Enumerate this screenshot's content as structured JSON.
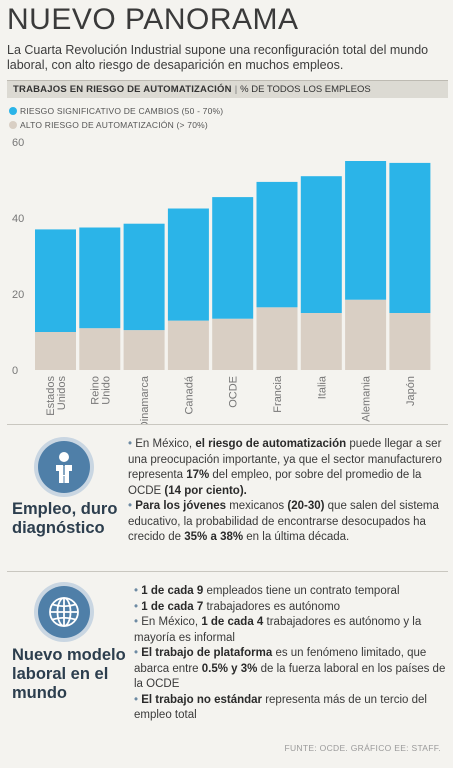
{
  "title": "NUEVO PANORAMA",
  "subtitle": "La Cuarta Revolución Industrial supone una reconfiguración total del mundo laboral, con alto riesgo de desaparición en muchos empleos.",
  "band": {
    "bold": "TRABAJOS EN RIESGO DE AUTOMATIZACIÓN",
    "sep": "|",
    "rest": "% DE TODOS LOS EMPLEOS"
  },
  "colors": {
    "significant": "#2bb4e8",
    "high": "#d9cfc4",
    "accent": "#4f7fa8"
  },
  "chart_data": {
    "type": "bar",
    "stacked": true,
    "categories": [
      "Estados Unidos",
      "Reino Unido",
      "Dinamarca",
      "Canadá",
      "OCDE",
      "Francia",
      "Italia",
      "Alemania",
      "Japón"
    ],
    "series": [
      {
        "name": "ALTO RIESGO DE AUTOMATIZACIÓN (> 70%)",
        "values": [
          10,
          11,
          10.5,
          13,
          13.5,
          16.5,
          15,
          18.5,
          15
        ],
        "color": "#d9cfc4"
      },
      {
        "name": "RIESGO SIGNIFICATIVO DE CAMBIOS (50 - 70%)",
        "values": [
          27,
          26.5,
          28,
          29.5,
          32,
          33,
          36,
          36.5,
          39.5
        ],
        "color": "#2bb4e8"
      }
    ],
    "ylim": [
      0,
      60
    ],
    "yticks": [
      "0",
      "20",
      "40",
      "60"
    ],
    "xtick_labels": [
      [
        "Estados",
        "Unidos"
      ],
      [
        "Reino",
        "Unido"
      ],
      [
        "Dinamarca"
      ],
      [
        "Canadá"
      ],
      [
        "OCDE"
      ],
      [
        "Francia"
      ],
      [
        "Italia"
      ],
      [
        "Alemania"
      ],
      [
        "Japón"
      ]
    ],
    "grid": false,
    "legend": "top-left"
  },
  "section1": {
    "title_line1": "Empleo, duro",
    "title_line2": "diagnóstico",
    "icon": "worker-icon",
    "bullets": [
      [
        {
          "t": "• ",
          "c": 1
        },
        {
          "t": "En México, "
        },
        {
          "t": "el riesgo de automatización",
          "b": 1
        },
        {
          "t": " puede llegar a ser una preocupación importante, ya que el sector manufacturero representa "
        },
        {
          "t": "17%",
          "b": 1
        },
        {
          "t": " del empleo, por sobre del promedio de la OCDE "
        },
        {
          "t": "(14 por ciento).",
          "b": 1
        }
      ],
      [
        {
          "t": "• ",
          "c": 1
        },
        {
          "t": "Para los jóvenes",
          "b": 1
        },
        {
          "t": " mexicanos "
        },
        {
          "t": "(20-30)",
          "b": 1
        },
        {
          "t": " que salen del sistema educativo, la probabilidad de encontrarse desocupados ha crecido de "
        },
        {
          "t": "35% a 38%",
          "b": 1
        },
        {
          "t": " en la última década."
        }
      ]
    ]
  },
  "section2": {
    "title_line1": "Nuevo modelo",
    "title_line2": "laboral en el",
    "title_line3": "mundo",
    "icon": "globe-icon",
    "bullets": [
      [
        {
          "t": "• ",
          "c": 1
        },
        {
          "t": "1 de cada 9",
          "b": 1
        },
        {
          "t": " empleados tiene un contrato temporal"
        }
      ],
      [
        {
          "t": "• ",
          "c": 1
        },
        {
          "t": "1 de cada 7",
          "b": 1
        },
        {
          "t": " trabajadores es autónomo"
        }
      ],
      [
        {
          "t": "• ",
          "c": 1
        },
        {
          "t": "En México, "
        },
        {
          "t": "1 de cada 4",
          "b": 1
        },
        {
          "t": " trabajadores es autónomo y la mayoría es informal"
        }
      ],
      [
        {
          "t": "• ",
          "c": 1
        },
        {
          "t": "El trabajo de plataforma",
          "b": 1
        },
        {
          "t": " es un fenómeno limitado, que abarca entre "
        },
        {
          "t": "0.5% y 3%",
          "b": 1
        },
        {
          "t": " de la fuerza laboral en los países de la OCDE"
        }
      ],
      [
        {
          "t": "• ",
          "c": 1
        },
        {
          "t": "El trabajo no estándar",
          "b": 1
        },
        {
          "t": " representa más de un tercio del empleo total"
        }
      ]
    ]
  },
  "footer": "FUNTE: OCDE. GRÁFICO EE: STAFF."
}
